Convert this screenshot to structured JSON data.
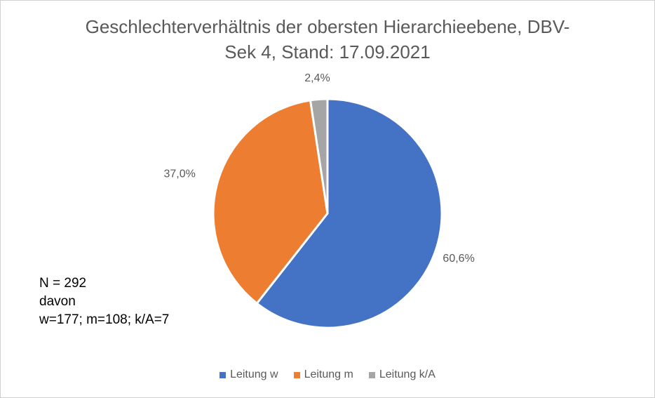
{
  "chart_data": {
    "type": "pie",
    "title_lines": [
      "Geschlechterverhältnis der obersten Hierarchieebene, DBV-",
      "Sek 4, Stand: 17.09.2021"
    ],
    "categories": [
      "Leitung w",
      "Leitung m",
      "Leitung k/A"
    ],
    "values": [
      60.6,
      37.0,
      2.4
    ],
    "data_labels": [
      "60,6%",
      "37,0%",
      "2,4%"
    ],
    "colors": [
      "#4472c4",
      "#ed7d31",
      "#a5a5a5"
    ],
    "legend_position": "bottom"
  },
  "annotation": {
    "lines": [
      "N = 292",
      "davon",
      "w=177; m=108; k/A=7"
    ]
  }
}
